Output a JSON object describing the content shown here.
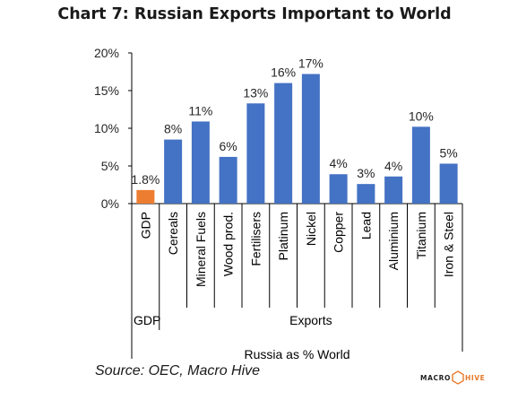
{
  "chart_data": {
    "type": "bar",
    "title": "Chart 7: Russian Exports Important to World",
    "categories": [
      "GDP",
      "Cereals",
      "Mineral Fuels",
      "Wood prod.",
      "Fertilisers",
      "Platinum",
      "Nickel",
      "Copper",
      "Lead",
      "Aluminium",
      "Titanium",
      "Iron & Steel"
    ],
    "values": [
      1.8,
      8.5,
      10.9,
      6.2,
      13.3,
      16.0,
      17.2,
      3.9,
      2.6,
      3.6,
      10.2,
      5.3
    ],
    "data_labels": [
      "1.8%",
      "8%",
      "11%",
      "6%",
      "13%",
      "16%",
      "17%",
      "4%",
      "3%",
      "4%",
      "10%",
      "5%"
    ],
    "colors": [
      "#ed7d31",
      "#4472c4",
      "#4472c4",
      "#4472c4",
      "#4472c4",
      "#4472c4",
      "#4472c4",
      "#4472c4",
      "#4472c4",
      "#4472c4",
      "#4472c4",
      "#4472c4"
    ],
    "groups": [
      {
        "label": "GDP",
        "categories": [
          "GDP"
        ]
      },
      {
        "label": "Exports",
        "categories": [
          "Cereals",
          "Mineral Fuels",
          "Wood prod.",
          "Fertilisers",
          "Platinum",
          "Nickel",
          "Copper",
          "Lead",
          "Aluminium",
          "Titanium",
          "Iron & Steel"
        ]
      }
    ],
    "xlabel": "Russia as % World",
    "ylabel": "",
    "ylim": [
      0,
      20
    ],
    "yticks": [
      0,
      5,
      10,
      15,
      20
    ],
    "ytick_labels": [
      "0%",
      "5%",
      "10%",
      "15%",
      "20%"
    ],
    "grid": false,
    "legend": "none"
  },
  "source": "Source: OEC, Macro Hive",
  "logo": {
    "text_left": "MACRO",
    "text_right": "HIVE",
    "accent": "#e8792b"
  }
}
